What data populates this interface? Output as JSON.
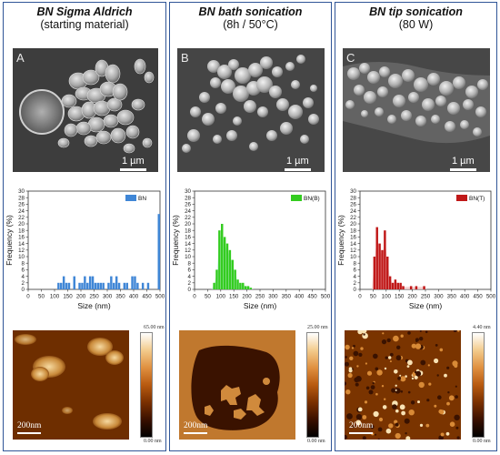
{
  "panels": [
    {
      "title": "BN Sigma Aldrich",
      "subtitle": "(starting material)",
      "letter": "A",
      "sem_scale": "1 µm",
      "afm_scale": "200nm",
      "afm_max": "65.00 nm",
      "afm_min": "0.00 nm",
      "colorbar": [
        "#000000",
        "#3a1000",
        "#7a3000",
        "#b85a10",
        "#e09040",
        "#f3cb8c",
        "#ffffff"
      ]
    },
    {
      "title": "BN bath sonication",
      "subtitle": "(8h / 50°C)",
      "letter": "B",
      "sem_scale": "1 µm",
      "afm_scale": "200nm",
      "afm_max": "25.00 nm",
      "afm_min": "0.00 nm",
      "colorbar": [
        "#000000",
        "#3a1000",
        "#7a3000",
        "#b85a10",
        "#e09040",
        "#f3cb8c",
        "#ffffff"
      ]
    },
    {
      "title": "BN tip sonication",
      "subtitle": "(80 W)",
      "letter": "C",
      "sem_scale": "1 µm",
      "afm_scale": "200nm",
      "afm_max": "4.40 nm",
      "afm_min": "0.00 nm",
      "colorbar": [
        "#000000",
        "#3a1000",
        "#7a3000",
        "#b85a10",
        "#e09040",
        "#f3cb8c",
        "#ffffff"
      ]
    }
  ],
  "chart_data": [
    {
      "type": "bar",
      "title": "",
      "xlabel": "Size (nm)",
      "ylabel": "Frequency (%)",
      "xlim": [
        0,
        500
      ],
      "ylim": [
        0,
        30
      ],
      "xticks": [
        0,
        50,
        100,
        150,
        200,
        250,
        300,
        350,
        400,
        450,
        500
      ],
      "yticks": [
        0,
        2,
        4,
        6,
        8,
        10,
        12,
        14,
        16,
        18,
        20,
        22,
        24,
        26,
        28,
        30
      ],
      "legend": "top-right",
      "series": [
        {
          "name": "BN",
          "color": "#3f86d6",
          "bin_width": 10,
          "x": [
            115,
            125,
            135,
            145,
            155,
            175,
            195,
            205,
            215,
            225,
            235,
            245,
            255,
            265,
            275,
            285,
            305,
            315,
            325,
            335,
            345,
            365,
            375,
            395,
            405,
            415,
            435,
            455,
            505
          ],
          "values": [
            2,
            2,
            4,
            2,
            2,
            4,
            2,
            2,
            4,
            2,
            4,
            4,
            2,
            2,
            2,
            2,
            2,
            4,
            2,
            4,
            2,
            2,
            2,
            4,
            4,
            2,
            2,
            2,
            23
          ]
        }
      ]
    },
    {
      "type": "bar",
      "title": "",
      "xlabel": "Size (nm)",
      "ylabel": "Frequency (%)",
      "xlim": [
        0,
        500
      ],
      "ylim": [
        0,
        30
      ],
      "xticks": [
        0,
        50,
        100,
        150,
        200,
        250,
        300,
        350,
        400,
        450,
        500
      ],
      "yticks": [
        0,
        2,
        4,
        6,
        8,
        10,
        12,
        14,
        16,
        18,
        20,
        22,
        24,
        26,
        28,
        30
      ],
      "legend": "top-right",
      "series": [
        {
          "name": "BN(B)",
          "color": "#33cc1f",
          "bin_width": 10,
          "x": [
            75,
            85,
            95,
            105,
            115,
            125,
            135,
            145,
            155,
            165,
            175,
            185,
            195,
            205,
            215
          ],
          "values": [
            2,
            6,
            18,
            20,
            16,
            14,
            12,
            9,
            6,
            3,
            2,
            2,
            1,
            1,
            0.5
          ]
        }
      ]
    },
    {
      "type": "bar",
      "title": "",
      "xlabel": "Size (nm)",
      "ylabel": "Frequency (%)",
      "xlim": [
        0,
        500
      ],
      "ylim": [
        0,
        30
      ],
      "xticks": [
        0,
        50,
        100,
        150,
        200,
        250,
        300,
        350,
        400,
        450,
        500
      ],
      "yticks": [
        0,
        2,
        4,
        6,
        8,
        10,
        12,
        14,
        16,
        18,
        20,
        22,
        24,
        26,
        28,
        30
      ],
      "legend": "top-right",
      "series": [
        {
          "name": "BN(T)",
          "color": "#c01818",
          "bin_width": 10,
          "x": [
            55,
            65,
            75,
            85,
            95,
            105,
            115,
            125,
            135,
            145,
            155,
            165,
            195,
            215,
            245
          ],
          "values": [
            10,
            19,
            14,
            12,
            18,
            10,
            4,
            2,
            3,
            2,
            2,
            1,
            1,
            1,
            1
          ]
        }
      ]
    }
  ]
}
